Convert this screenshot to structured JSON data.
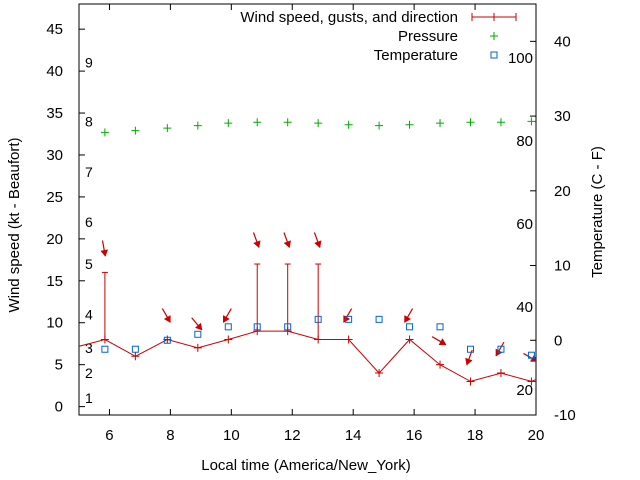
{
  "chart_data": {
    "type": "line",
    "xlabel": "Local time (America/New_York)",
    "ylabel_left": "Wind speed (kt - Beaufort)",
    "ylabel_right": "Temperature (C - F)",
    "xlim": [
      5,
      20
    ],
    "ylim_left": [
      -1,
      48
    ],
    "ylim_right": [
      -10,
      45
    ],
    "x_ticks": [
      6,
      8,
      10,
      12,
      14,
      16,
      18,
      20
    ],
    "y_left_ticks": [
      0,
      5,
      10,
      15,
      20,
      25,
      30,
      35,
      40,
      45
    ],
    "y_right_ticks": [
      -10,
      0,
      10,
      20,
      30,
      40
    ],
    "fahrenheit_ticks": [
      {
        "label": "20",
        "celsius": -6.67
      },
      {
        "label": "40",
        "celsius": 4.44
      },
      {
        "label": "60",
        "celsius": 15.56
      },
      {
        "label": "80",
        "celsius": 26.67
      },
      {
        "label": "100",
        "celsius": 37.78
      }
    ],
    "beaufort_labels": [
      {
        "label": "1",
        "kt": 1
      },
      {
        "label": "2",
        "kt": 4
      },
      {
        "label": "3",
        "kt": 7
      },
      {
        "label": "4",
        "kt": 11
      },
      {
        "label": "5",
        "kt": 17
      },
      {
        "label": "6",
        "kt": 22
      },
      {
        "label": "7",
        "kt": 28
      },
      {
        "label": "8",
        "kt": 34
      },
      {
        "label": "9",
        "kt": 41
      }
    ],
    "legend": [
      {
        "label": "Wind speed, gusts, and direction",
        "color": "#cc0000",
        "marker": "line-plus"
      },
      {
        "label": "Pressure",
        "color": "#00aa00",
        "marker": "plus"
      },
      {
        "label": "Temperature",
        "color": "#0066cc",
        "marker": "square"
      }
    ],
    "series": [
      {
        "name": "Wind speed, gusts, and direction",
        "color": "#cc0000",
        "points": [
          {
            "x": 4.8,
            "y": 7,
            "gust": null,
            "dir": null
          },
          {
            "x": 5.85,
            "y": 8,
            "gust": 16,
            "dir": 350
          },
          {
            "x": 6.85,
            "y": 6,
            "gust": null,
            "dir": null
          },
          {
            "x": 7.9,
            "y": 8,
            "gust": null,
            "dir": 330
          },
          {
            "x": 8.9,
            "y": 7,
            "gust": null,
            "dir": 320
          },
          {
            "x": 9.9,
            "y": 8,
            "gust": null,
            "dir": 30
          },
          {
            "x": 10.85,
            "y": 9,
            "gust": 17,
            "dir": 340
          },
          {
            "x": 11.85,
            "y": 9,
            "gust": 17,
            "dir": 340
          },
          {
            "x": 12.85,
            "y": 8,
            "gust": 17,
            "dir": 340
          },
          {
            "x": 13.85,
            "y": 8,
            "gust": null,
            "dir": 30
          },
          {
            "x": 14.85,
            "y": 4,
            "gust": null,
            "dir": null
          },
          {
            "x": 15.85,
            "y": 8,
            "gust": null,
            "dir": 30
          },
          {
            "x": 16.85,
            "y": 5,
            "gust": null,
            "dir": 300
          },
          {
            "x": 17.85,
            "y": 3,
            "gust": null,
            "dir": 20
          },
          {
            "x": 18.85,
            "y": 4,
            "gust": null,
            "dir": 30
          },
          {
            "x": 19.85,
            "y": 3,
            "gust": null,
            "dir": 300
          },
          {
            "x": 20.5,
            "y": 4,
            "gust": null,
            "dir": null
          }
        ]
      },
      {
        "name": "Pressure",
        "color": "#00aa00",
        "points": [
          {
            "x": 5.85,
            "y": 32.7
          },
          {
            "x": 6.85,
            "y": 32.9
          },
          {
            "x": 7.9,
            "y": 33.2
          },
          {
            "x": 8.9,
            "y": 33.5
          },
          {
            "x": 9.9,
            "y": 33.8
          },
          {
            "x": 10.85,
            "y": 33.9
          },
          {
            "x": 11.85,
            "y": 33.9
          },
          {
            "x": 12.85,
            "y": 33.8
          },
          {
            "x": 13.85,
            "y": 33.6
          },
          {
            "x": 14.85,
            "y": 33.5
          },
          {
            "x": 15.85,
            "y": 33.6
          },
          {
            "x": 16.85,
            "y": 33.8
          },
          {
            "x": 17.85,
            "y": 33.9
          },
          {
            "x": 18.85,
            "y": 33.9
          },
          {
            "x": 19.85,
            "y": 34.0
          }
        ]
      },
      {
        "name": "Temperature",
        "color": "#0066cc",
        "axis": "right",
        "points": [
          {
            "x": 5.85,
            "y": -1.2
          },
          {
            "x": 6.85,
            "y": -1.2
          },
          {
            "x": 7.9,
            "y": 0
          },
          {
            "x": 8.9,
            "y": 0.8
          },
          {
            "x": 9.9,
            "y": 1.8
          },
          {
            "x": 10.85,
            "y": 1.8
          },
          {
            "x": 11.85,
            "y": 1.8
          },
          {
            "x": 12.85,
            "y": 2.8
          },
          {
            "x": 13.85,
            "y": 2.8
          },
          {
            "x": 14.85,
            "y": 2.8
          },
          {
            "x": 15.85,
            "y": 1.8
          },
          {
            "x": 16.85,
            "y": 1.8
          },
          {
            "x": 17.85,
            "y": -1.2
          },
          {
            "x": 18.85,
            "y": -1.2
          },
          {
            "x": 19.85,
            "y": -2.0
          }
        ]
      }
    ]
  }
}
